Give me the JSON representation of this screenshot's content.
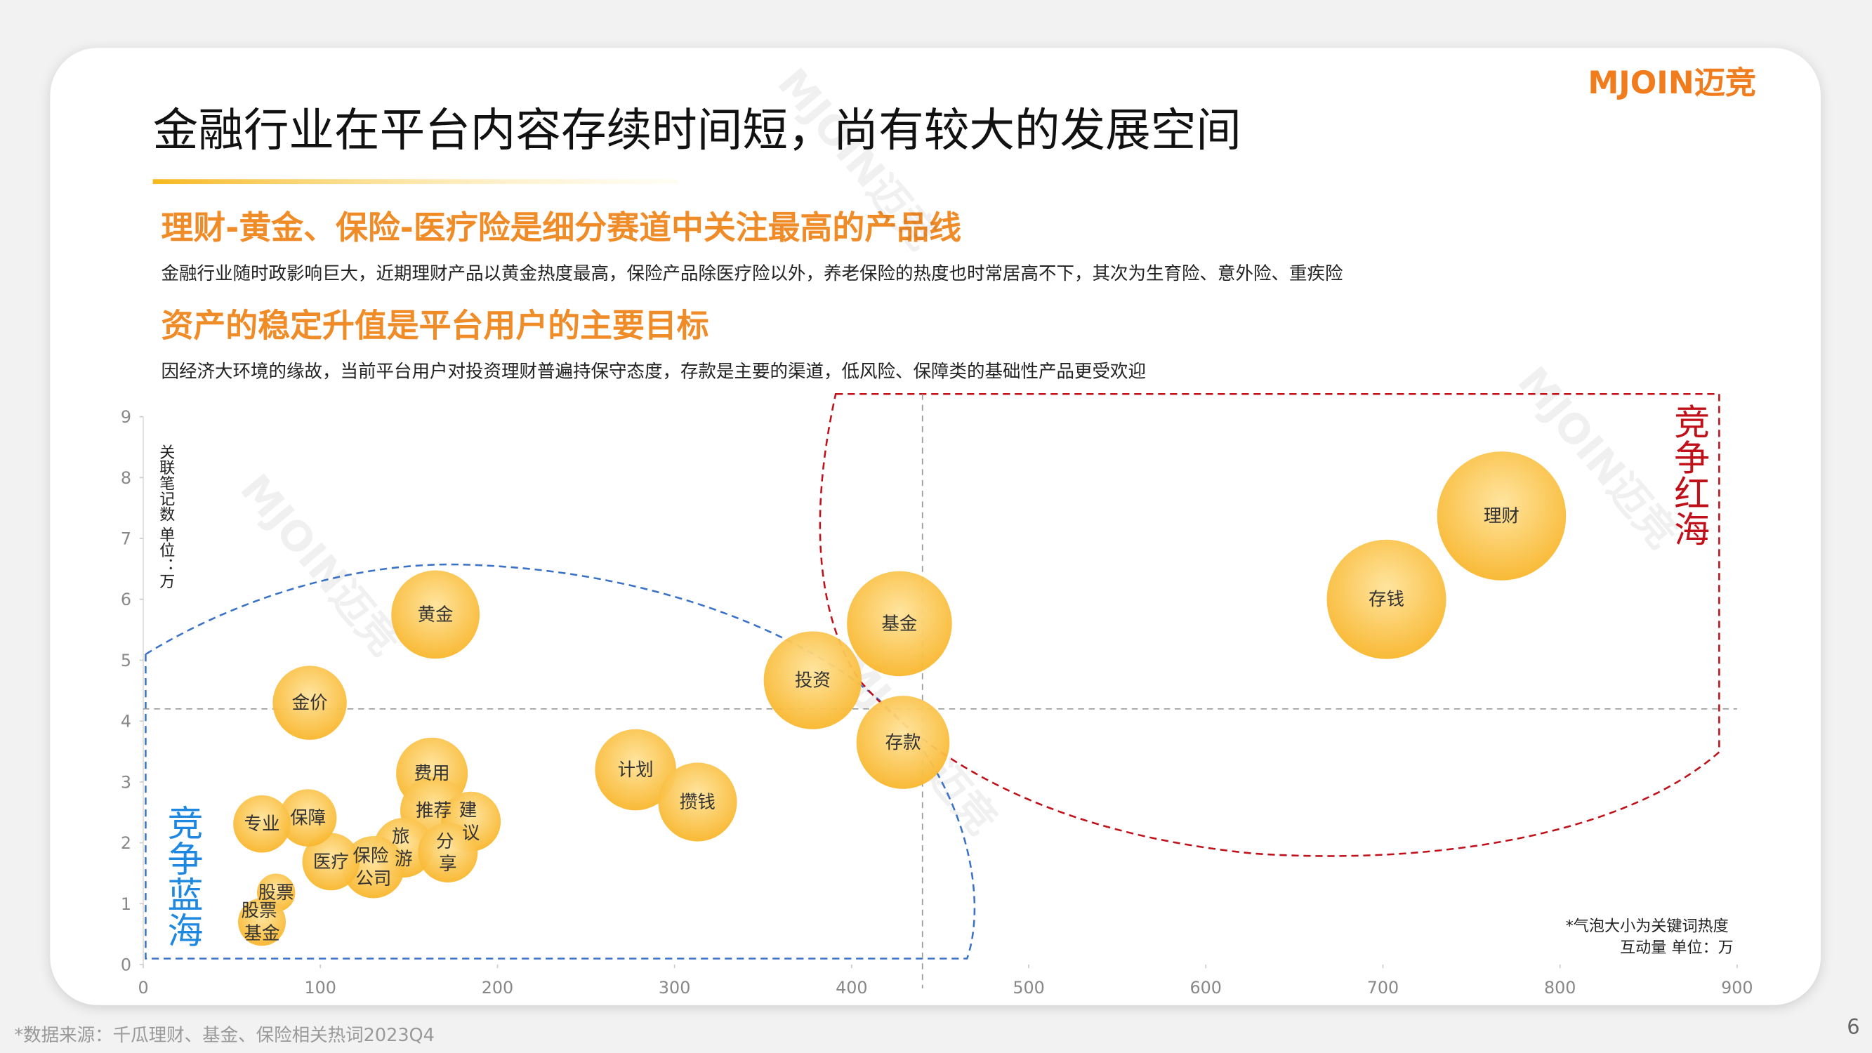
{
  "header": {
    "logo": "MJOIN迈竞",
    "title": "金融行业在平台内容存续时间短，尚有较大的发展空间",
    "watermark": "MJOIN迈竞"
  },
  "sections": [
    {
      "heading": "理财-黄金、保险-医疗险是细分赛道中关注最高的产品线",
      "text": "金融行业随时政影响巨大，近期理财产品以黄金热度最高，保险产品除医疗险以外，养老保险的热度也时常居高不下，其次为生育险、意外险、重疾险"
    },
    {
      "heading": "资产的稳定升值是平台用户的主要目标",
      "text": "因经济大环境的缘故，当前平台用户对投资理财普遍持保守态度，存款是主要的渠道，低风险、保障类的基础性产品更受欢迎"
    }
  ],
  "chart_data": {
    "type": "bubble",
    "y_label": "关联笔记数  单位：万",
    "note": "*气泡大小为关键词热度\n互动量  单位：万",
    "red_zone": "竞争红海",
    "blue_zone": "竞争蓝海",
    "color": "#f8b62c",
    "labels": [
      "理财",
      "存钱",
      "基金",
      "投资",
      "存款",
      "计划",
      "攒钱",
      "黄金",
      "金价",
      "费用",
      "推荐",
      "建\n议",
      "旅\n游",
      "分\n享",
      "保险\n公司",
      "医疗",
      "保障",
      "专业",
      "股票",
      "股票\n基金"
    ],
    "x": [
      767,
      702,
      427,
      378,
      429,
      278,
      313,
      165,
      94,
      163,
      164,
      185,
      147,
      172,
      130,
      106,
      93,
      67,
      75,
      67
    ],
    "values": [
      7.37,
      6.0,
      5.6,
      4.67,
      3.65,
      3.2,
      2.67,
      5.75,
      4.3,
      3.14,
      2.53,
      2.35,
      1.92,
      1.84,
      1.6,
      1.69,
      2.41,
      2.31,
      1.18,
      0.7
    ],
    "sizes": [
      54,
      50,
      44,
      41,
      39,
      34,
      33,
      37,
      31,
      30,
      28,
      25,
      25,
      25,
      26,
      24,
      24,
      24,
      16,
      20
    ],
    "reference_lines": {
      "x": 440,
      "y": 4.2
    },
    "xlim": [
      0,
      900
    ],
    "xticks": [
      0,
      100,
      200,
      300,
      400,
      500,
      600,
      700,
      800,
      900
    ],
    "ylim": [
      0,
      9
    ],
    "yticks": [
      0,
      1,
      2,
      3,
      4,
      5,
      6,
      7,
      8,
      9
    ]
  },
  "footer": {
    "source": "*数据来源：千瓜理财、基金、保险相关热词2023Q4",
    "page": "6"
  }
}
